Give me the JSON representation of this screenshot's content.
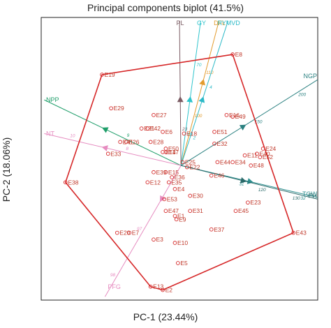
{
  "chart_data": {
    "type": "scatter",
    "title": "Principal components biplot (41.5%)",
    "xlabel": "PC-1  (23.44%)",
    "ylabel": "PC-2  (18.06%)",
    "xlim": [
      -4.6,
      4.5
    ],
    "ylim": [
      -4.0,
      4.4
    ],
    "grid": false,
    "colors": {
      "frame": "#222222",
      "hull": "#d62728",
      "genotype": "#d62728",
      "PL": "#7b5b63",
      "GY": "#2ec4cc",
      "DFL": "#e39b2e",
      "RYMVD": "#2bb9c7",
      "NGP": "#2a8080",
      "NPP": "#1f9e6a",
      "NT": "#e68cc0",
      "TGW": "#2d8f8f",
      "PFG": "#e68cc0",
      "PH": "#2a6a6a"
    },
    "genotypes": [
      {
        "name": "E1",
        "x": -0.2,
        "y": -1.5
      },
      {
        "name": "E2",
        "x": -0.6,
        "y": -3.7
      },
      {
        "name": "E3",
        "x": -0.9,
        "y": -2.2
      },
      {
        "name": "E4",
        "x": -0.2,
        "y": -0.7
      },
      {
        "name": "E5",
        "x": -0.1,
        "y": -2.9
      },
      {
        "name": "E6",
        "x": -0.6,
        "y": 1.0
      },
      {
        "name": "E7",
        "x": -1.7,
        "y": -2.0
      },
      {
        "name": "E8",
        "x": 1.7,
        "y": 3.3
      },
      {
        "name": "E9",
        "x": -0.15,
        "y": -1.6
      },
      {
        "name": "E10",
        "x": -0.2,
        "y": -2.3
      },
      {
        "name": "E11",
        "x": 2.1,
        "y": 0.3
      },
      {
        "name": "E12",
        "x": -1.1,
        "y": -0.5
      },
      {
        "name": "E13",
        "x": -1.0,
        "y": -3.6
      },
      {
        "name": "E14",
        "x": -0.6,
        "y": 0.4
      },
      {
        "name": "E15",
        "x": -0.5,
        "y": -0.2
      },
      {
        "name": "E16",
        "x": 1.5,
        "y": 1.5
      },
      {
        "name": "E17",
        "x": -0.5,
        "y": 0.4
      },
      {
        "name": "E18",
        "x": 0.1,
        "y": 0.95
      },
      {
        "name": "E19",
        "x": -2.6,
        "y": 2.7
      },
      {
        "name": "E20",
        "x": -2.1,
        "y": -2.0
      },
      {
        "name": "E21",
        "x": -1.3,
        "y": 1.1
      },
      {
        "name": "E22",
        "x": 0.2,
        "y": -0.05
      },
      {
        "name": "E23",
        "x": 2.2,
        "y": -1.1
      },
      {
        "name": "E24",
        "x": 2.7,
        "y": 0.5
      },
      {
        "name": "E25",
        "x": 0.05,
        "y": 0.1
      },
      {
        "name": "E26",
        "x": -1.8,
        "y": 0.7
      },
      {
        "name": "E27",
        "x": -0.9,
        "y": 1.5
      },
      {
        "name": "E28",
        "x": -1.0,
        "y": 0.7
      },
      {
        "name": "E29",
        "x": -2.3,
        "y": 1.7
      },
      {
        "name": "E30",
        "x": 0.3,
        "y": -0.9
      },
      {
        "name": "E31",
        "x": 0.3,
        "y": -1.35
      },
      {
        "name": "E32",
        "x": 1.1,
        "y": 0.65
      },
      {
        "name": "E33",
        "x": -2.4,
        "y": 0.35
      },
      {
        "name": "E34",
        "x": 1.7,
        "y": 0.1
      },
      {
        "name": "E35",
        "x": -0.4,
        "y": -0.5
      },
      {
        "name": "E36",
        "x": -0.3,
        "y": -0.35
      },
      {
        "name": "E37",
        "x": 1.0,
        "y": -1.9
      },
      {
        "name": "E38",
        "x": -3.8,
        "y": -0.5
      },
      {
        "name": "E39",
        "x": -0.9,
        "y": -0.2
      },
      {
        "name": "E40",
        "x": 2.5,
        "y": 0.35
      },
      {
        "name": "E41",
        "x": -2.0,
        "y": 0.7
      },
      {
        "name": "E42",
        "x": -1.1,
        "y": 1.1
      },
      {
        "name": "E43",
        "x": 3.7,
        "y": -2.0
      },
      {
        "name": "E44",
        "x": 1.2,
        "y": 0.1
      },
      {
        "name": "E45",
        "x": 1.8,
        "y": -1.35
      },
      {
        "name": "E46",
        "x": 1.0,
        "y": -0.3
      },
      {
        "name": "E47",
        "x": -0.5,
        "y": -1.35
      },
      {
        "name": "E48",
        "x": 2.3,
        "y": 0.0
      },
      {
        "name": "E49",
        "x": 1.7,
        "y": 1.45
      },
      {
        "name": "E50",
        "x": -0.5,
        "y": 0.5
      },
      {
        "name": "E51",
        "x": 1.1,
        "y": 1.0
      },
      {
        "name": "E52",
        "x": 2.6,
        "y": 0.25
      },
      {
        "name": "E53",
        "x": -0.55,
        "y": -1.0
      }
    ],
    "hull": [
      "E8",
      "E43",
      "E2",
      "E13",
      "E38",
      "E19"
    ],
    "traits": [
      {
        "name": "PL",
        "dx": -0.05,
        "dy": 4.3,
        "arrow": 0.45,
        "ticks": [
          {
            "t": 0.25,
            "label": "23"
          }
        ]
      },
      {
        "name": "GY",
        "dx": 0.65,
        "dy": 4.3,
        "arrow": 0.45,
        "ticks": [
          {
            "t": 0.22,
            "label": "10"
          },
          {
            "t": 0.7,
            "label": "70"
          }
        ]
      },
      {
        "name": "DFL",
        "dx": 1.25,
        "dy": 4.3,
        "arrow": 0.57,
        "ticks": [
          {
            "t": 0.35,
            "label": "100"
          },
          {
            "t": 0.65,
            "label": "110"
          }
        ]
      },
      {
        "name": "RYMVD",
        "dx": 1.55,
        "dy": 4.3,
        "arrow": 0.45,
        "ticks": [
          {
            "t": 0.2,
            "label": "2"
          },
          {
            "t": 0.55,
            "label": "4"
          }
        ]
      },
      {
        "name": "NGP",
        "dx": 4.5,
        "dy": 2.55,
        "arrow": 0.45,
        "ticks": [
          {
            "t": 0.55,
            "label": "150"
          },
          {
            "t": 0.87,
            "label": "200"
          }
        ]
      },
      {
        "name": "NPP",
        "dx": -4.5,
        "dy": 1.95,
        "arrow": 0.55,
        "ticks": [
          {
            "t": 0.4,
            "label": "9"
          }
        ]
      },
      {
        "name": "NT",
        "dx": -4.5,
        "dy": 0.95,
        "arrow": 0.55,
        "ticks": [
          {
            "t": 0.4,
            "label": "8"
          },
          {
            "t": 0.8,
            "label": "10"
          }
        ]
      },
      {
        "name": "TGW",
        "dx": 4.5,
        "dy": -0.95,
        "arrow": 0.5,
        "ticks": [
          {
            "t": 0.45,
            "label": "31"
          },
          {
            "t": 0.9,
            "label": "32"
          }
        ]
      },
      {
        "name": "PFG",
        "dx": -2.5,
        "dy": -3.9,
        "arrow": 0.25,
        "ticks": [
          {
            "t": 0.5,
            "label": "97"
          },
          {
            "t": 0.85,
            "label": "98"
          }
        ]
      },
      {
        "name": "PH",
        "dx": 4.5,
        "dy": -1.0,
        "arrow": 0.45,
        "ticks": [
          {
            "t": 0.6,
            "label": "120"
          },
          {
            "t": 0.85,
            "label": "130"
          }
        ]
      }
    ]
  }
}
